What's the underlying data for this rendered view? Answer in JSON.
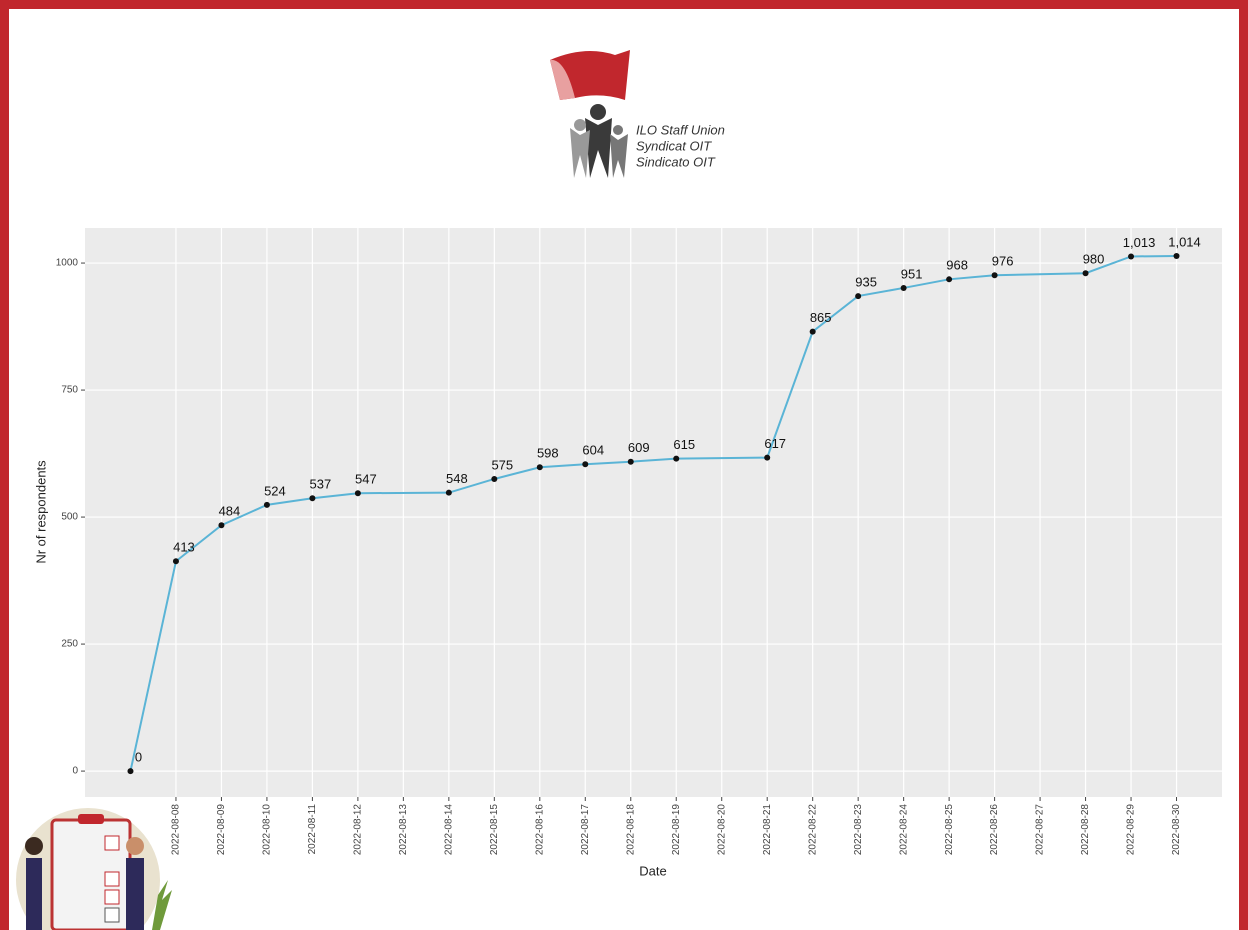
{
  "logo": {
    "lines": [
      "ILO Staff Union",
      "Syndicat OIT",
      "Sindicato OIT"
    ]
  },
  "chart_data": {
    "type": "line",
    "x_label": "Date",
    "y_label": "Nr of respondents",
    "x": [
      "2022-08-07",
      "2022-08-08",
      "2022-08-09",
      "2022-08-10",
      "2022-08-11",
      "2022-08-12",
      "2022-08-14",
      "2022-08-15",
      "2022-08-16",
      "2022-08-17",
      "2022-08-18",
      "2022-08-19",
      "2022-08-21",
      "2022-08-22",
      "2022-08-23",
      "2022-08-24",
      "2022-08-25",
      "2022-08-26",
      "2022-08-28",
      "2022-08-29",
      "2022-08-30"
    ],
    "series": [
      {
        "name": "Nr of respondents",
        "color": "#5ab4d6",
        "values": [
          0,
          413,
          484,
          524,
          537,
          547,
          548,
          575,
          598,
          604,
          609,
          615,
          617,
          865,
          935,
          951,
          968,
          976,
          980,
          1013,
          1014
        ],
        "value_labels": [
          "0",
          "413",
          "484",
          "524",
          "537",
          "547",
          "548",
          "575",
          "598",
          "604",
          "609",
          "615",
          "617",
          "865",
          "935",
          "951",
          "968",
          "976",
          "980",
          "1,013",
          "1,014"
        ]
      }
    ],
    "xlim": [
      "2022-08-06",
      "2022-08-31"
    ],
    "xticks": [
      "2022-08-08",
      "2022-08-09",
      "2022-08-10",
      "2022-08-11",
      "2022-08-12",
      "2022-08-13",
      "2022-08-14",
      "2022-08-15",
      "2022-08-16",
      "2022-08-17",
      "2022-08-18",
      "2022-08-19",
      "2022-08-20",
      "2022-08-21",
      "2022-08-22",
      "2022-08-23",
      "2022-08-24",
      "2022-08-25",
      "2022-08-26",
      "2022-08-27",
      "2022-08-28",
      "2022-08-29",
      "2022-08-30"
    ],
    "ylim": [
      -51,
      1069
    ],
    "yticks": [
      0,
      250,
      500,
      750,
      1000
    ],
    "grid": true
  }
}
